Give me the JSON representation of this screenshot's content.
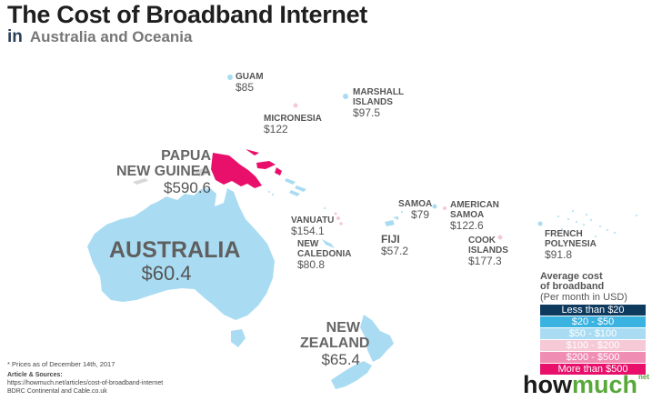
{
  "title": "The Cost of Broadband Internet",
  "subtitle": {
    "prefix": "in",
    "region": "Australia and Oceania"
  },
  "colors": {
    "land_default": "#a9dcf3",
    "less_than_20": "#0e3a5e",
    "r20_50": "#3bb3e0",
    "r50_100": "#a9dcf3",
    "r100_200": "#f6c9d6",
    "r200_500": "#ef8db2",
    "more_than_500": "#e8106a"
  },
  "places": {
    "guam": {
      "name": "GUAM",
      "price": "$85"
    },
    "marshall": {
      "name_line1": "MARSHALL",
      "name_line2": "ISLANDS",
      "price": "$97.5"
    },
    "micronesia": {
      "name": "MICRONESIA",
      "price": "$122"
    },
    "png": {
      "name_line1": "PAPUA",
      "name_line2": "NEW GUINEA",
      "price": "$590.6"
    },
    "samoa": {
      "name": "SAMOA",
      "price": "$79"
    },
    "american_samoa": {
      "name_line1": "AMERICAN",
      "name_line2": "SAMOA",
      "price": "$122.6"
    },
    "vanuatu": {
      "name": "VANUATU",
      "price": "$154.1"
    },
    "fiji": {
      "name": "FIJI",
      "price": "$57.2"
    },
    "cook": {
      "name_line1": "COOK",
      "name_line2": "ISLANDS",
      "price": "$177.3"
    },
    "french_polynesia": {
      "name_line1": "FRENCH",
      "name_line2": "POLYNESIA",
      "price": "$91.8"
    },
    "new_caledonia": {
      "name_line1": "NEW",
      "name_line2": "CALEDONIA",
      "price": "$80.8"
    },
    "australia": {
      "name": "AUSTRALIA",
      "price": "$60.4"
    },
    "new_zealand": {
      "name_line1": "NEW",
      "name_line2": "ZEALAND",
      "price": "$65.4"
    }
  },
  "legend": {
    "title_line1": "Average cost",
    "title_line2": "of broadband",
    "subtitle": "(Per month in USD)",
    "items": [
      {
        "label": "Less than $20",
        "color": "#0e3a5e"
      },
      {
        "label": "$20 - $50",
        "color": "#3bb3e0"
      },
      {
        "label": "$50 - $100",
        "color": "#a9dcf3"
      },
      {
        "label": "$100 - $200",
        "color": "#f6c9d6"
      },
      {
        "label": "$200 - $500",
        "color": "#ef8db2"
      },
      {
        "label": "More than $500",
        "color": "#e8106a"
      }
    ]
  },
  "footnote": "* Prices as of December 14th, 2017",
  "sources": {
    "heading": "Article & Sources:",
    "line1": "https://howmuch.net/articles/cost-of-broadband-internet",
    "line2": "BDRC Continental and Cable.co.uk"
  },
  "logo": {
    "part1": "how",
    "part2": "much",
    "suffix": "net"
  }
}
